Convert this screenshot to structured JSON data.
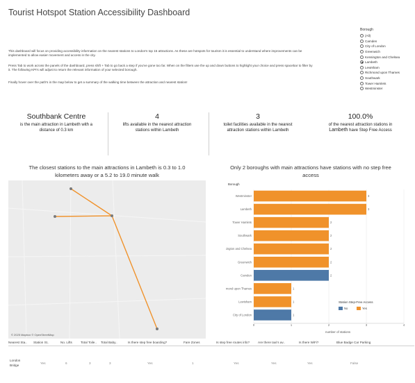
{
  "title": "Tourist Hotspot Station Accessibility Dashboard",
  "intro": {
    "p1a": "This dashboard will focus on providing accessibility information on the nearest stations to London's top 15 attractions. As these are hotspots for tourism it is essential to understand where improvements can be",
    "p1b": "implemented to allow easier movement and access in the city.",
    "p2a": "Press Tab to work across the panels of the dashboard, press shift + Tab to go back a step if you've gone too far. When on the filters use the up and down buttons to highlight your choice and press spacebar to filter by",
    "p2b": "it. The following KPI's will adjust to return the relevant information of your selected borough.",
    "p3": "Finally hover over the path's in the map below to get a summary of the walking time between the attraction and nearest station!"
  },
  "filter": {
    "title": "Borough",
    "options": [
      "(All)",
      "Camden",
      "City of London",
      "Greenwich",
      "Kensington and Chelsea",
      "Lambeth",
      "Lewisham",
      "Richmond upon Thames",
      "Southwark",
      "Tower Hamlets",
      "Westminster"
    ],
    "selected": "Lambeth"
  },
  "kpis": {
    "k1_big": "Southbank Centre",
    "k1_l1": "is the main attraction in Lambeth with a",
    "k1_l2": "distance of 0.3 km",
    "k2_big": "4",
    "k2_l1": "lifts available in the nearest attraction",
    "k2_l2": "stations within Lambeth",
    "k3_big": "3",
    "k3_l1": "toilet facilities available in the nearest",
    "k3_l2": "attraction stations within Lambeth",
    "k4_big": "100.0%",
    "k4_l1": "of the nearest attraction stations in",
    "k4_l2a": "Lambeth",
    "k4_l2b": " have Step Free Access"
  },
  "map": {
    "title_l1": "The closest stations to the main attractions in Lambeth is 0.3 to 1.0",
    "title_l2": "kilometers away or a 5.2 to 19.0 minute walk",
    "attribution": "© 2025 Mapbox © OpenStreetMap"
  },
  "chart_title": {
    "l1": "Only 2 boroughs with main attractions have stations with no step free",
    "l2": "access"
  },
  "colors": {
    "yes": "#f0922b",
    "no": "#4e79a7",
    "path": "#f0922b",
    "point": "#7a7a7a"
  },
  "chart_data": {
    "type": "bar",
    "orientation": "horizontal",
    "categories": [
      "Westminster",
      "Lambeth",
      "Tower Hamlets",
      "Southwark",
      "Kensington and Chelsea",
      "Greenwich",
      "Camden",
      "Richmond upon Thames",
      "Lewisham",
      "City of London"
    ],
    "values": [
      3,
      3,
      2,
      2,
      2,
      2,
      2,
      1,
      1,
      1
    ],
    "step_free": [
      "Yes",
      "Yes",
      "Yes",
      "Yes",
      "Yes",
      "Yes",
      "No",
      "Yes",
      "Yes",
      "No"
    ],
    "ylabel": "Borough",
    "xlabel": "number of stations",
    "xlim": [
      0,
      4
    ],
    "xticks": [
      0,
      1,
      2,
      3,
      4
    ],
    "legend": {
      "title": "Station Step-Free Access",
      "entries": [
        "No",
        "Yes"
      ],
      "position": "bottom-right"
    },
    "grid": true
  },
  "table": {
    "headers": [
      "Nearest Sta..",
      "Station St..",
      "No. Lifts",
      "Total Toile..",
      "Total Baby..",
      "Is there step free boarding?",
      "Fare Zones",
      "Is step free routes info?",
      "Are there taxi's av..",
      "Is there WiFi?",
      "Blue Badge Car Parking"
    ],
    "row_station_l1": "London",
    "row_station_l2": "Bridge",
    "row": [
      "Yes",
      "6",
      "3",
      "3",
      "Yes",
      "1",
      "Yes",
      "Yes",
      "Yes",
      "False"
    ]
  }
}
